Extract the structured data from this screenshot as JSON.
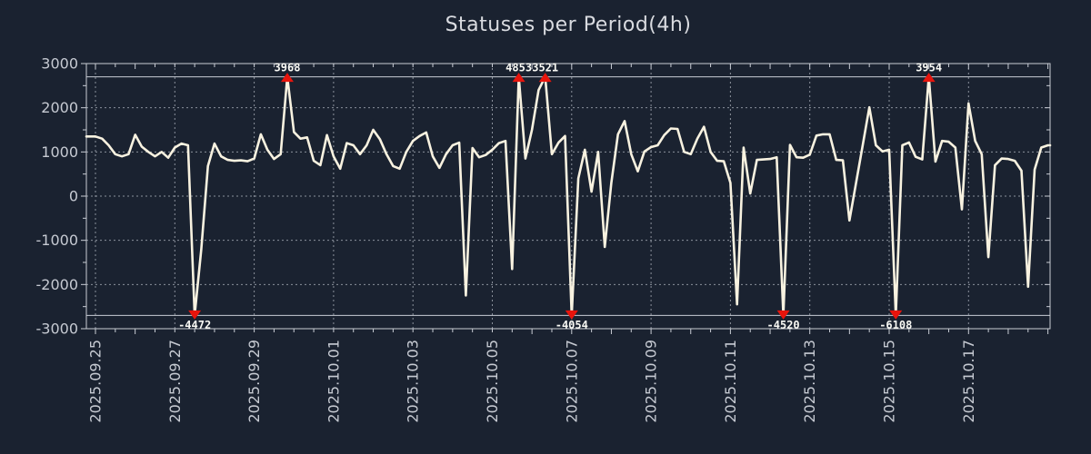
{
  "chart_data": {
    "type": "line",
    "title": "Statuses per Period(4h)",
    "series_name": "statuses",
    "start_date": "2025.09.25",
    "interval_hours": 4,
    "ylim": [
      -3000,
      3000
    ],
    "y_tick_step": 1000,
    "y_minor_step": 500,
    "clip_value": 2700,
    "grid": "dotted",
    "legend": "none",
    "y_tick_labels": [
      "3000",
      "2000",
      "1000",
      "0",
      "-1000",
      "-2000",
      "-3000"
    ],
    "x_tick_labels": [
      "2025.09.25",
      "2025.09.27",
      "2025.09.29",
      "2025.10.01",
      "2025.10.03",
      "2025.10.05",
      "2025.10.07",
      "2025.10.09",
      "2025.10.11",
      "2025.10.13",
      "2025.10.15",
      "2025.10.17"
    ],
    "x_tick_interval_days": 2,
    "values": [
      1350,
      1300,
      1150,
      950,
      900,
      950,
      1390,
      1120,
      1000,
      900,
      1000,
      870,
      1100,
      1190,
      1150,
      -4472,
      -1200,
      680,
      1190,
      900,
      820,
      800,
      810,
      790,
      850,
      1400,
      1050,
      840,
      950,
      3968,
      1450,
      1300,
      1330,
      800,
      700,
      1380,
      900,
      620,
      1200,
      1150,
      950,
      1150,
      1500,
      1290,
      950,
      680,
      620,
      1000,
      1250,
      1360,
      1440,
      900,
      640,
      950,
      1150,
      1210,
      -2250,
      1090,
      880,
      930,
      1050,
      1200,
      1250,
      -1650,
      4853,
      850,
      1500,
      2400,
      3521,
      950,
      1210,
      1360,
      -4054,
      400,
      1050,
      100,
      1000,
      -1150,
      300,
      1400,
      1700,
      950,
      560,
      1010,
      1110,
      1150,
      1380,
      1530,
      1520,
      1000,
      950,
      1300,
      1570,
      1000,
      800,
      790,
      300,
      -2450,
      1100,
      60,
      820,
      830,
      840,
      880,
      -4520,
      1160,
      880,
      870,
      940,
      1370,
      1400,
      1400,
      820,
      810,
      -550,
      300,
      1150,
      2010,
      1150,
      1010,
      1050,
      -6108,
      1150,
      1215,
      890,
      830,
      3954,
      780,
      1250,
      1230,
      1100,
      -300,
      2100,
      1250,
      950,
      -1380,
      700,
      850,
      840,
      800,
      575,
      -2050,
      600,
      1100,
      1150
    ],
    "annotations": [
      {
        "index": 15,
        "value": -4472,
        "label": "-4472"
      },
      {
        "index": 29,
        "value": 3968,
        "label": "3968"
      },
      {
        "index": 64,
        "value": 4853,
        "label": "4853"
      },
      {
        "index": 68,
        "value": 3521,
        "label": "3521"
      },
      {
        "index": 72,
        "value": -4054,
        "label": "-4054"
      },
      {
        "index": 104,
        "value": -4520,
        "label": "-4520"
      },
      {
        "index": 121,
        "value": -6108,
        "label": "-6108"
      },
      {
        "index": 126,
        "value": 3954,
        "label": "3954"
      }
    ]
  },
  "colors": {
    "background": "#1a2230",
    "line": "#f8f2e0",
    "marker": "#e8140c",
    "grid": "#8b919c",
    "border": "#c9cdd5",
    "tick_text": "#c6cad2",
    "title_text": "#d9dbe0",
    "annotation_text": "#fafaf5"
  }
}
